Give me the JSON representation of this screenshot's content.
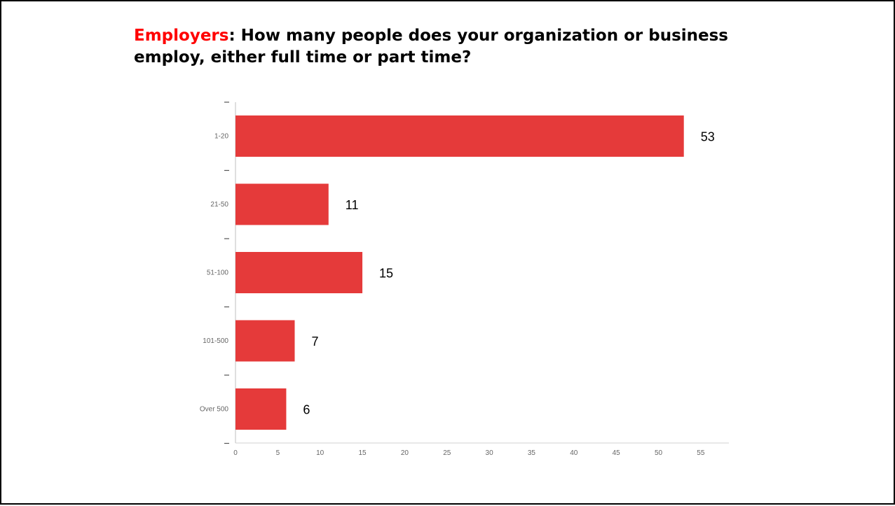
{
  "slide": {
    "title_highlight": "Employers",
    "title_rest": ": How many people does your organization or business employ, either full time or part time?"
  },
  "chart_data": {
    "type": "bar",
    "orientation": "horizontal",
    "categories": [
      "1-20",
      "21-50",
      "51-100",
      "101-500",
      "Over 500"
    ],
    "values": [
      53,
      11,
      15,
      7,
      6
    ],
    "xlim": [
      0,
      58
    ],
    "xticks": [
      0,
      5,
      10,
      15,
      20,
      25,
      30,
      35,
      40,
      45,
      50,
      55
    ],
    "data_labels": true,
    "grid": false,
    "bar_color": "#e53a3a",
    "title_highlight_color": "#ff0000"
  }
}
